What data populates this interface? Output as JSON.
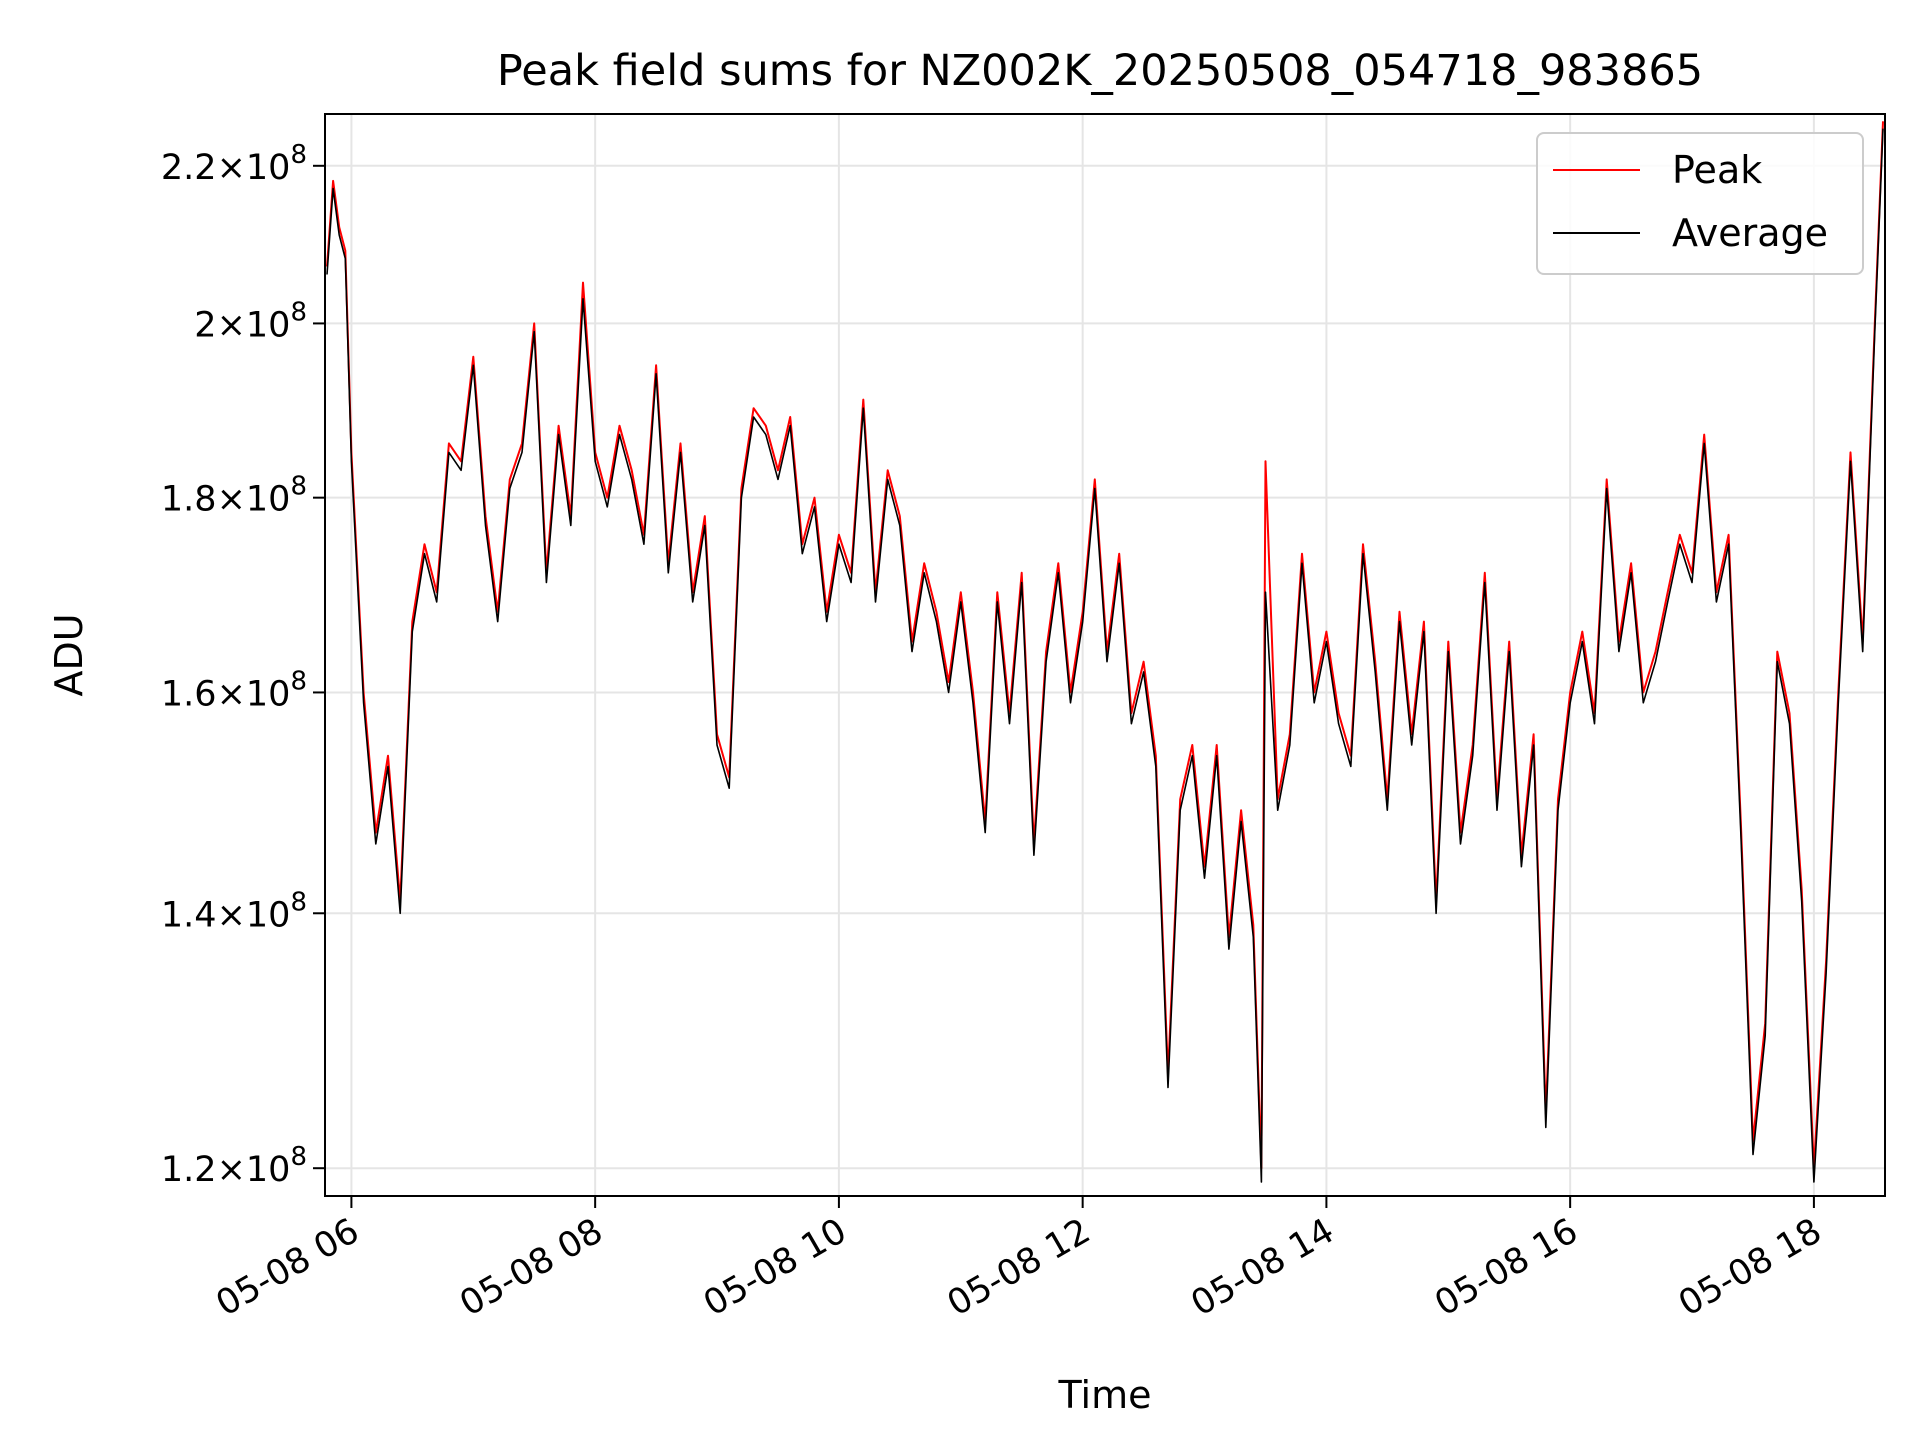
{
  "chart_data": {
    "type": "line",
    "title": "Peak field sums for NZ002K_20250508_054718_983865",
    "xlabel": "Time",
    "ylabel": "ADU",
    "xlim": [
      "05-08 05:47",
      "05-08 18:35"
    ],
    "ylim": [
      118000000,
      227000000
    ],
    "y_scale": "log",
    "grid": true,
    "legend_position": "top-right",
    "x_ticks": [
      "05-08 06",
      "05-08 08",
      "05-08 10",
      "05-08 12",
      "05-08 14",
      "05-08 16",
      "05-08 18"
    ],
    "y_ticks": [
      {
        "value": 220000000,
        "mantissa": "2.2",
        "exponent": "8"
      },
      {
        "value": 200000000,
        "mantissa": "2",
        "exponent": "8"
      },
      {
        "value": 180000000,
        "mantissa": "1.8",
        "exponent": "8"
      },
      {
        "value": 160000000,
        "mantissa": "1.6",
        "exponent": "8"
      },
      {
        "value": 140000000,
        "mantissa": "1.4",
        "exponent": "8"
      },
      {
        "value": 120000000,
        "mantissa": "1.2",
        "exponent": "8"
      }
    ],
    "tick_prefix": "05-08",
    "times_x": [
      "05:48",
      "05:51",
      "05:54",
      "05:57",
      "06:00",
      "06:06",
      "06:12",
      "06:18",
      "06:24",
      "06:30",
      "06:36",
      "06:42",
      "06:48",
      "06:54",
      "07:00",
      "07:06",
      "07:12",
      "07:18",
      "07:24",
      "07:30",
      "07:36",
      "07:42",
      "07:48",
      "07:54",
      "08:00",
      "08:06",
      "08:12",
      "08:18",
      "08:24",
      "08:30",
      "08:36",
      "08:42",
      "08:48",
      "08:54",
      "09:00",
      "09:06",
      "09:12",
      "09:18",
      "09:24",
      "09:30",
      "09:36",
      "09:42",
      "09:48",
      "09:54",
      "10:00",
      "10:06",
      "10:12",
      "10:18",
      "10:24",
      "10:30",
      "10:36",
      "10:42",
      "10:48",
      "10:54",
      "11:00",
      "11:06",
      "11:12",
      "11:18",
      "11:24",
      "11:30",
      "11:36",
      "11:42",
      "11:48",
      "11:54",
      "12:00",
      "12:06",
      "12:12",
      "12:18",
      "12:24",
      "12:30",
      "12:36",
      "12:42",
      "12:48",
      "12:54",
      "13:00",
      "13:06",
      "13:12",
      "13:18",
      "13:24",
      "13:28",
      "13:30",
      "13:36",
      "13:42",
      "13:48",
      "13:54",
      "14:00",
      "14:06",
      "14:12",
      "14:18",
      "14:24",
      "14:30",
      "14:36",
      "14:42",
      "14:48",
      "14:54",
      "15:00",
      "15:06",
      "15:12",
      "15:18",
      "15:24",
      "15:30",
      "15:36",
      "15:42",
      "15:48",
      "15:54",
      "16:00",
      "16:06",
      "16:12",
      "16:18",
      "16:24",
      "16:30",
      "16:36",
      "16:42",
      "16:48",
      "16:54",
      "17:00",
      "17:06",
      "17:12",
      "17:18",
      "17:24",
      "17:30",
      "17:36",
      "17:42",
      "17:48",
      "17:54",
      "18:00",
      "18:06",
      "18:12",
      "18:18",
      "18:24",
      "18:30",
      "18:34"
    ],
    "series": [
      {
        "name": "Peak",
        "color": "#ff0000",
        "values": [
          207000000,
          218000000,
          212000000,
          209000000,
          185000000,
          160000000,
          147000000,
          154000000,
          141000000,
          167000000,
          175000000,
          170000000,
          186000000,
          184000000,
          196000000,
          178000000,
          168000000,
          182000000,
          186000000,
          200000000,
          172000000,
          188000000,
          178000000,
          205000000,
          185000000,
          180000000,
          188000000,
          183000000,
          176000000,
          195000000,
          173000000,
          186000000,
          170000000,
          178000000,
          156000000,
          152000000,
          181000000,
          190000000,
          188000000,
          183000000,
          189000000,
          175000000,
          180000000,
          168000000,
          176000000,
          172000000,
          191000000,
          170000000,
          183000000,
          178000000,
          165000000,
          173000000,
          168000000,
          161000000,
          170000000,
          160000000,
          148000000,
          170000000,
          158000000,
          172000000,
          146000000,
          164000000,
          173000000,
          160000000,
          168000000,
          182000000,
          164000000,
          174000000,
          158000000,
          163000000,
          154000000,
          127000000,
          150000000,
          155000000,
          144000000,
          155000000,
          138000000,
          149000000,
          139000000,
          120000000,
          184000000,
          150000000,
          156000000,
          174000000,
          160000000,
          166000000,
          158000000,
          154000000,
          175000000,
          163000000,
          150000000,
          168000000,
          156000000,
          167000000,
          141000000,
          165000000,
          147000000,
          155000000,
          172000000,
          150000000,
          165000000,
          145000000,
          156000000,
          124000000,
          150000000,
          160000000,
          166000000,
          158000000,
          182000000,
          165000000,
          173000000,
          160000000,
          164000000,
          170000000,
          176000000,
          172000000,
          187000000,
          170000000,
          176000000,
          148000000,
          122000000,
          131000000,
          164000000,
          158000000,
          142000000,
          120000000,
          136000000,
          160000000,
          185000000,
          165000000,
          200000000,
          226000000
        ]
      },
      {
        "name": "Average",
        "color": "#000000",
        "values": [
          206000000,
          217000000,
          211000000,
          208000000,
          184000000,
          159000000,
          146000000,
          153000000,
          140000000,
          166000000,
          174000000,
          169000000,
          185000000,
          183000000,
          195000000,
          177000000,
          167000000,
          181000000,
          185000000,
          199000000,
          171000000,
          187000000,
          177000000,
          203000000,
          184000000,
          179000000,
          187000000,
          182000000,
          175000000,
          194000000,
          172000000,
          185000000,
          169000000,
          177000000,
          155000000,
          151000000,
          180000000,
          189000000,
          187000000,
          182000000,
          188000000,
          174000000,
          179000000,
          167000000,
          175000000,
          171000000,
          190000000,
          169000000,
          182000000,
          177000000,
          164000000,
          172000000,
          167000000,
          160000000,
          169000000,
          159000000,
          147000000,
          169000000,
          157000000,
          171000000,
          145000000,
          163000000,
          172000000,
          159000000,
          167000000,
          181000000,
          163000000,
          173000000,
          157000000,
          162000000,
          153000000,
          126000000,
          149000000,
          154000000,
          143000000,
          154000000,
          137000000,
          148000000,
          138000000,
          119000000,
          170000000,
          149000000,
          155000000,
          173000000,
          159000000,
          165000000,
          157000000,
          153000000,
          174000000,
          162000000,
          149000000,
          167000000,
          155000000,
          166000000,
          140000000,
          164000000,
          146000000,
          154000000,
          171000000,
          149000000,
          164000000,
          144000000,
          155000000,
          123000000,
          149000000,
          159000000,
          165000000,
          157000000,
          181000000,
          164000000,
          172000000,
          159000000,
          163000000,
          169000000,
          175000000,
          171000000,
          186000000,
          169000000,
          175000000,
          147000000,
          121000000,
          130000000,
          163000000,
          157000000,
          141000000,
          119000000,
          135000000,
          159000000,
          184000000,
          164000000,
          199000000,
          225000000
        ]
      }
    ]
  }
}
